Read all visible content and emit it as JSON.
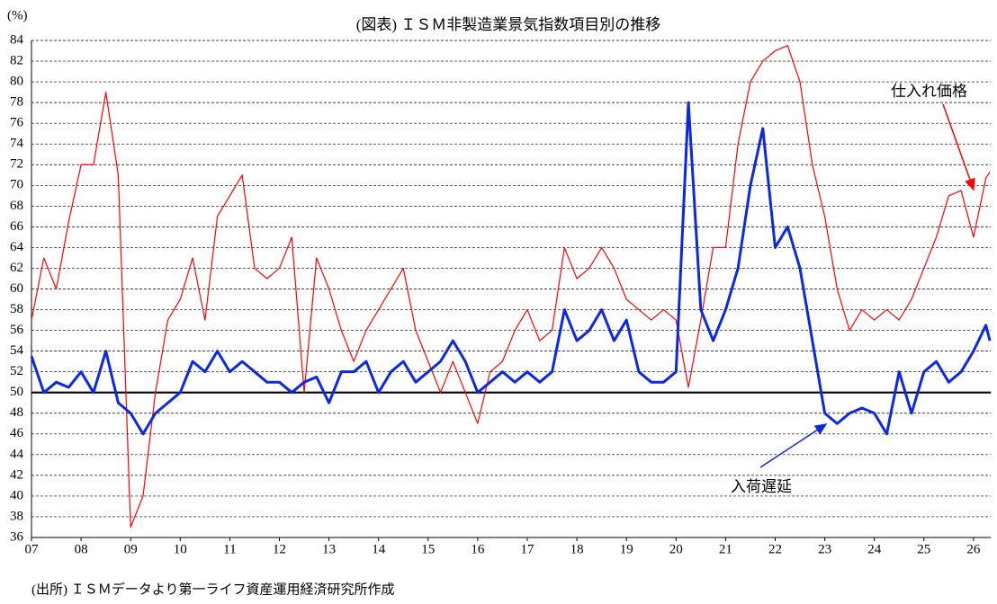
{
  "chart_data": {
    "type": "line",
    "title": "(図表) ＩＳＭ非製造業景気指数項目別の推移",
    "y_unit": "(%)",
    "source": "(出所) ＩＳＭデータより第一ライフ資産運用経済研究所作成",
    "x": [
      2007,
      2007.25,
      2007.5,
      2007.75,
      2008,
      2008.25,
      2008.5,
      2008.75,
      2009,
      2009.25,
      2009.5,
      2009.75,
      2010,
      2010.25,
      2010.5,
      2010.75,
      2011,
      2011.25,
      2011.5,
      2011.75,
      2012,
      2012.25,
      2012.5,
      2012.75,
      2013,
      2013.25,
      2013.5,
      2013.75,
      2014,
      2014.25,
      2014.5,
      2014.75,
      2015,
      2015.25,
      2015.5,
      2015.75,
      2016,
      2016.25,
      2016.5,
      2016.75,
      2017,
      2017.25,
      2017.5,
      2017.75,
      2018,
      2018.25,
      2018.5,
      2018.75,
      2019,
      2019.25,
      2019.5,
      2019.75,
      2020,
      2020.25,
      2020.5,
      2020.75,
      2021,
      2021.25,
      2021.5,
      2021.75,
      2022,
      2022.25,
      2022.5,
      2022.75,
      2023,
      2023.25,
      2023.5,
      2023.75,
      2024,
      2024.25,
      2024.5,
      2024.75,
      2025,
      2025.25,
      2025.5,
      2025.75,
      2026,
      2026.25,
      2026.33
    ],
    "series": [
      {
        "name": "仕入れ価格",
        "color": "#ff0000",
        "width": 1.2,
        "values": [
          57,
          63,
          60,
          66.5,
          72,
          72,
          79,
          71,
          37,
          40,
          50,
          57,
          59,
          63,
          57,
          67,
          69,
          71,
          62,
          61,
          62,
          65,
          50,
          63,
          60,
          56,
          53,
          56,
          58,
          60,
          62,
          56,
          53,
          50,
          53,
          50,
          47,
          52,
          53,
          56,
          58,
          55,
          56,
          64,
          61,
          62,
          64,
          62,
          59,
          58,
          57,
          58,
          57,
          50.5,
          57,
          64,
          64,
          74,
          80,
          82,
          83,
          83.5,
          80,
          72,
          67,
          60,
          56,
          58,
          57,
          58,
          57,
          59,
          62,
          65,
          69,
          69.5,
          65,
          70.7,
          71.3
        ]
      },
      {
        "name": "入荷遅延",
        "color": "#0a28e6",
        "width": 3,
        "values": [
          53.5,
          50,
          51,
          50.5,
          52,
          50,
          54,
          49,
          48,
          46,
          48,
          49,
          50,
          53,
          52,
          54,
          52,
          53,
          52,
          51,
          51,
          50,
          51,
          51.5,
          49,
          52,
          52,
          53,
          50,
          52,
          53,
          51,
          52,
          53,
          55,
          53,
          50,
          51,
          52,
          51,
          52,
          51,
          52,
          58,
          55,
          56,
          58,
          55,
          57,
          52,
          51,
          51,
          52,
          78,
          58,
          55,
          58,
          62,
          70,
          75.5,
          64,
          66,
          62,
          55,
          48,
          47,
          48,
          48.5,
          48,
          46,
          52,
          48,
          52,
          53,
          51,
          52,
          54,
          56.5,
          55
        ]
      }
    ],
    "reference_line": 50,
    "xlim": [
      2007,
      2026.35
    ],
    "xticks": [
      {
        "value": 2007,
        "label": "07"
      },
      {
        "value": 2008,
        "label": "08"
      },
      {
        "value": 2009,
        "label": "09"
      },
      {
        "value": 2010,
        "label": "10"
      },
      {
        "value": 2011,
        "label": "11"
      },
      {
        "value": 2012,
        "label": "12"
      },
      {
        "value": 2013,
        "label": "13"
      },
      {
        "value": 2014,
        "label": "14"
      },
      {
        "value": 2015,
        "label": "15"
      },
      {
        "value": 2016,
        "label": "16"
      },
      {
        "value": 2017,
        "label": "17"
      },
      {
        "value": 2018,
        "label": "18"
      },
      {
        "value": 2019,
        "label": "19"
      },
      {
        "value": 2020,
        "label": "20"
      },
      {
        "value": 2021,
        "label": "21"
      },
      {
        "value": 2022,
        "label": "22"
      },
      {
        "value": 2023,
        "label": "23"
      },
      {
        "value": 2024,
        "label": "24"
      },
      {
        "value": 2025,
        "label": "25"
      },
      {
        "value": 2026,
        "label": "26"
      }
    ],
    "ylim": [
      36,
      84
    ],
    "yticks": [
      36,
      38,
      40,
      42,
      44,
      46,
      48,
      50,
      52,
      54,
      56,
      58,
      60,
      62,
      64,
      66,
      68,
      70,
      72,
      74,
      76,
      78,
      80,
      82,
      84
    ],
    "grid": true
  }
}
